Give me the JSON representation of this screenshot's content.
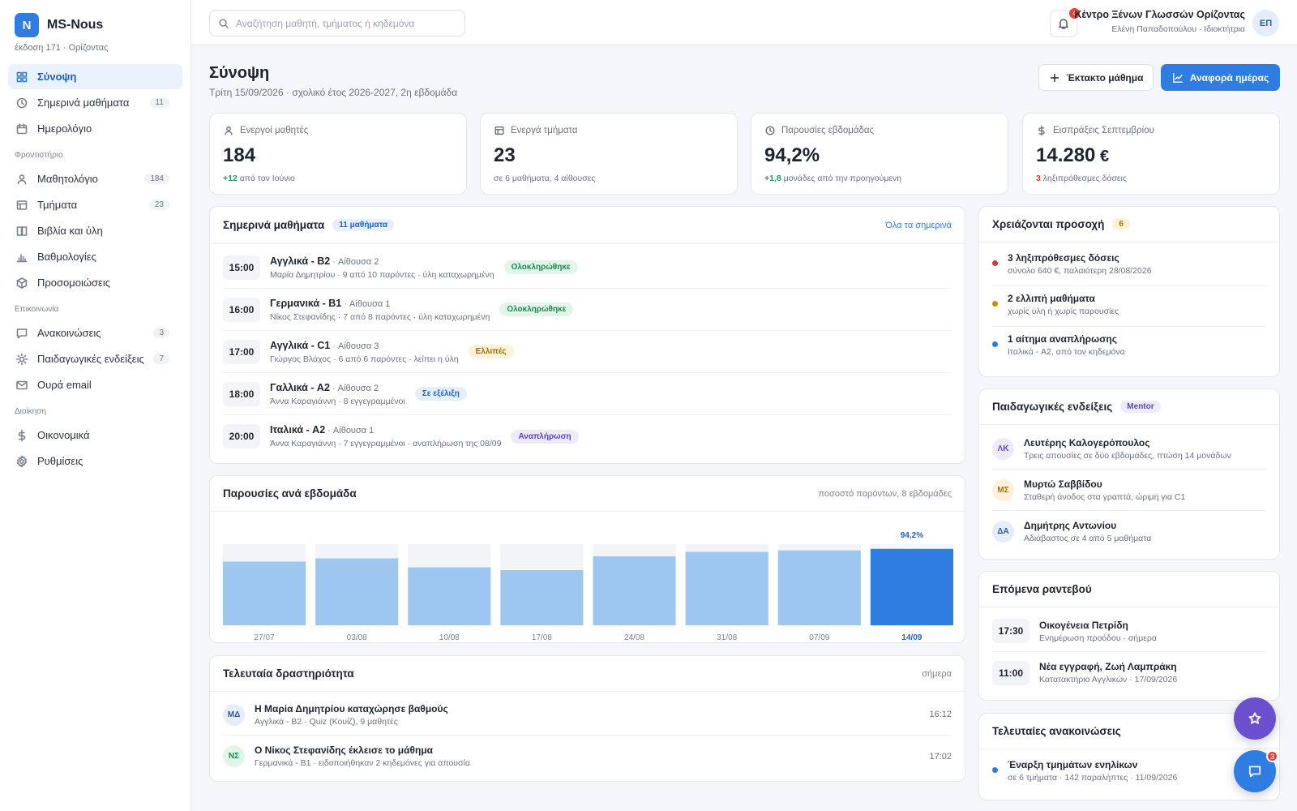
{
  "app": {
    "logo_letter": "N",
    "name": "MS-Nous",
    "version": "έκδοση 171 · Ορίζοντας"
  },
  "sidebar": {
    "main": [
      {
        "label": "Σύνοψη",
        "icon": "dashboard-icon"
      },
      {
        "label": "Σημερινά μαθήματα",
        "icon": "clock-icon",
        "badge": "11"
      },
      {
        "label": "Ημερολόγιο",
        "icon": "calendar-icon"
      }
    ],
    "section1": "Φροντιστήριο",
    "school": [
      {
        "label": "Μαθητολόγιο",
        "icon": "user-icon",
        "badge": "184"
      },
      {
        "label": "Τμήματα",
        "icon": "table-icon",
        "badge": "23"
      },
      {
        "label": "Βιβλία και ύλη",
        "icon": "book-icon"
      },
      {
        "label": "Βαθμολογίες",
        "icon": "bar-chart-icon"
      },
      {
        "label": "Προσομοιώσεις",
        "icon": "cube-icon"
      }
    ],
    "section2": "Επικοινωνία",
    "comm": [
      {
        "label": "Ανακοινώσεις",
        "icon": "message-icon",
        "badge": "3"
      },
      {
        "label": "Παιδαγωγικές ενδείξεις",
        "icon": "sun-icon",
        "badge": "7"
      },
      {
        "label": "Ουρά email",
        "icon": "mail-icon"
      }
    ],
    "section3": "Διοίκηση",
    "admin": [
      {
        "label": "Οικονομικά",
        "icon": "dollar-icon"
      },
      {
        "label": "Ρυθμίσεις",
        "icon": "gear-icon"
      }
    ]
  },
  "header": {
    "search_placeholder": "Αναζήτηση μαθητή, τμήματος ή κηδεμόνα",
    "notifications": "4",
    "org_name": "Κέντρο Ξένων Γλωσσών Ορίζοντας",
    "user": "Ελένη Παπαδοπούλου · Ιδιοκτήτρια",
    "avatar": "ΕΠ"
  },
  "page": {
    "title": "Σύνοψη",
    "subtitle": "Τρίτη 15/09/2026 · σχολικό έτος 2026-2027, 2η εβδομάδα",
    "btn_extra": "Έκτακτο μάθημα",
    "btn_report": "Αναφορά ημέρας"
  },
  "stats": [
    {
      "label": "Ενεργοί μαθητές",
      "icon": "user-icon",
      "value": "184",
      "unit": "",
      "note_em": "+12",
      "note": " από τον Ιούνιο",
      "tone": "pos"
    },
    {
      "label": "Ενεργά τμήματα",
      "icon": "table-icon",
      "value": "23",
      "unit": "",
      "note_em": "",
      "note": "σε 6 μαθήματα, 4 αίθουσες",
      "tone": ""
    },
    {
      "label": "Παρουσίες εβδομάδας",
      "icon": "clock-icon",
      "value": "94,2%",
      "unit": "",
      "note_em": "+1,8",
      "note": " μονάδες από την προηγούμενη",
      "tone": "pos"
    },
    {
      "label": "Εισπράξεις Σεπτεμβρίου",
      "icon": "dollar-icon",
      "value": "14.280",
      "unit": " €",
      "note_em": "3",
      "note": " ληξιπρόθεσμες δόσεις",
      "tone": "neg"
    }
  ],
  "lessons": {
    "title": "Σημερινά μαθήματα",
    "count": "11 μαθήματα",
    "link": "Όλα τα σημερινά",
    "items": [
      {
        "time": "15:00",
        "course": "Αγγλικά - B2",
        "room": " · Αίθουσα 2",
        "meta": "Μαρία Δημητρίου · 9 από 10 παρόντες · ύλη καταχωρημένη",
        "status": "Ολοκληρώθηκε",
        "cls": "st-done"
      },
      {
        "time": "16:00",
        "course": "Γερμανικά - B1",
        "room": " · Αίθουσα 1",
        "meta": "Νίκος Στεφανίδης · 7 από 8 παρόντες · ύλη καταχωρημένη",
        "status": "Ολοκληρώθηκε",
        "cls": "st-done"
      },
      {
        "time": "17:00",
        "course": "Αγγλικά - C1",
        "room": " · Αίθουσα 3",
        "meta": "Γιώργος Βλάχος · 6 από 6 παρόντες · λείπει η ύλη",
        "status": "Ελλιπές",
        "cls": "st-miss"
      },
      {
        "time": "18:00",
        "course": "Γαλλικά - A2",
        "room": " · Αίθουσα 2",
        "meta": "Άννα Καραγιάννη · 8 εγγεγραμμένοι",
        "status": "Σε εξέλιξη",
        "cls": "st-prog"
      },
      {
        "time": "20:00",
        "course": "Ιταλικά - A2",
        "room": " · Αίθουσα 1",
        "meta": "Άννα Καραγιάννη · 7 εγγεγραμμένοι · αναπλήρωση της 08/09",
        "status": "Αναπλήρωση",
        "cls": "st-rep"
      }
    ]
  },
  "chart_data": {
    "type": "bar",
    "title": "Παρουσίες ανά εβδομάδα",
    "subtitle": "ποσοστό παρόντων, 8 εβδομάδες",
    "categories": [
      "27/07",
      "03/08",
      "10/08",
      "17/08",
      "24/08",
      "31/08",
      "07/09",
      "14/09"
    ],
    "values": [
      78.5,
      82.5,
      71.5,
      68.0,
      85.0,
      90.5,
      92.4,
      94.2
    ],
    "data_label": "94,2%",
    "ylim": [
      0,
      100
    ],
    "highlight_index": 7,
    "colors": {
      "bar": "#9ec7ef",
      "highlight": "#2f7de1",
      "track": "#f2f4f8"
    }
  },
  "activity": {
    "title": "Τελευταία δραστηριότητα",
    "meta": "σήμερα",
    "items": [
      {
        "avatar": "ΜΔ",
        "cls": "av-blue",
        "title": "Η Μαρία Δημητρίου καταχώρησε βαθμούς",
        "sub": "Αγγλικά - B2 · Quiz (Κουίζ), 9 μαθητές",
        "time": "16:12"
      },
      {
        "avatar": "ΝΣ",
        "cls": "av-green",
        "title": "Ο Νίκος Στεφανίδης έκλεισε το μάθημα",
        "sub": "Γερμανικά - B1 · ειδοποιήθηκαν 2 κηδεμόνες για απουσία",
        "time": "17:02"
      }
    ]
  },
  "attention": {
    "title": "Χρειάζονται προσοχή",
    "count": "6",
    "items": [
      {
        "title": "3 ληξιπρόθεσμες δόσεις",
        "sub": "σύνολο 640 €, παλαιότερη 28/08/2026",
        "color": "#d43a35"
      },
      {
        "title": "2 ελλιπή μαθήματα",
        "sub": "χωρίς ύλη ή χωρίς παρουσίες",
        "color": "#c98a10"
      },
      {
        "title": "1 αίτημα αναπλήρωσης",
        "sub": "Ιταλικά - A2, από τον κηδεμόνα",
        "color": "#2f7de1"
      }
    ]
  },
  "pedagogy": {
    "title": "Παιδαγωγικές ενδείξεις",
    "tag": "Mentor",
    "items": [
      {
        "avatar": "ΛΚ",
        "cls": "av-purple",
        "name": "Λευτέρης Καλογερόπουλος",
        "note": "Τρεις απουσίες σε δύο εβδομάδες, πτώση 14 μονάδων"
      },
      {
        "avatar": "ΜΣ",
        "cls": "av-orange",
        "name": "Μυρτώ Σαββίδου",
        "note": "Σταθερή άνοδος στα γραπτά, ώριμη για C1"
      },
      {
        "avatar": "ΔΑ",
        "cls": "av-blue",
        "name": "Δημήτρης Αντωνίου",
        "note": "Αδιάβαστος σε 4 από 5 μαθήματα"
      }
    ]
  },
  "appointments": {
    "title": "Επόμενα ραντεβού",
    "items": [
      {
        "time": "17:30",
        "title": "Οικογένεια Πετρίδη",
        "sub": "Ενημέρωση προόδου · σήμερα"
      },
      {
        "time": "11:00",
        "title": "Νέα εγγραφή, Ζωή Λαμπράκη",
        "sub": "Κατατακτήριο Αγγλικών · 17/09/2026"
      }
    ]
  },
  "announcements": {
    "title": "Τελευταίες ανακοινώσεις",
    "items": [
      {
        "title": "Έναρξη τμημάτων ενηλίκων",
        "sub": "σε 6 τμήματα · 142 παραλήπτες · 11/09/2026",
        "color": "#2f7de1"
      }
    ]
  },
  "fab": {
    "chat_badge": "3"
  }
}
